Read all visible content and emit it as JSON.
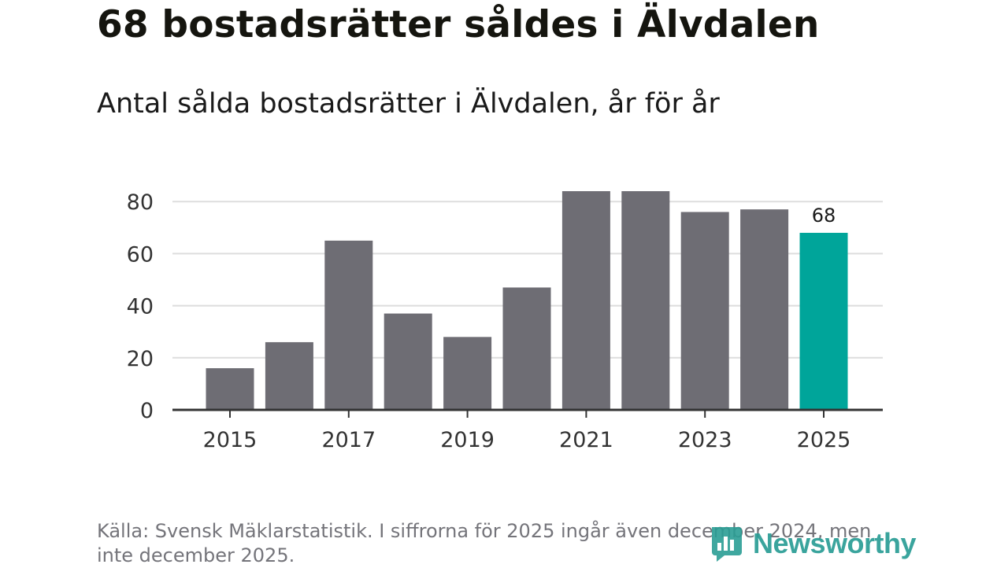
{
  "header": {
    "title": "68 bostadsrätter såldes i Älvdalen",
    "subtitle": "Antal sålda bostadsrätter i Älvdalen, år för år"
  },
  "footer": {
    "source": "Källa: Svensk Mäklarstatistik. I siffrorna för 2025 ingår även december 2024, men inte december 2025.",
    "brand": "Newsworthy"
  },
  "colors": {
    "bar": "#6e6d74",
    "highlight": "#00a59a",
    "grid": "#dddddd",
    "axis": "#333333"
  },
  "chart_data": {
    "type": "bar",
    "title": "68 bostadsrätter såldes i Älvdalen",
    "subtitle": "Antal sålda bostadsrätter i Älvdalen, år för år",
    "xlabel": "",
    "ylabel": "",
    "categories": [
      "2015",
      "2016",
      "2017",
      "2018",
      "2019",
      "2020",
      "2021",
      "2022",
      "2023",
      "2024",
      "2025"
    ],
    "values": [
      16,
      26,
      65,
      37,
      28,
      47,
      84,
      84,
      76,
      77,
      68
    ],
    "x_tick_labels": [
      "2015",
      "2017",
      "2019",
      "2021",
      "2023",
      "2025"
    ],
    "y_ticks": [
      0,
      20,
      40,
      60,
      80
    ],
    "ylim": [
      0,
      84
    ],
    "grid": true,
    "highlight_category": "2025",
    "data_labels": [
      {
        "category": "2025",
        "text": "68"
      }
    ]
  }
}
